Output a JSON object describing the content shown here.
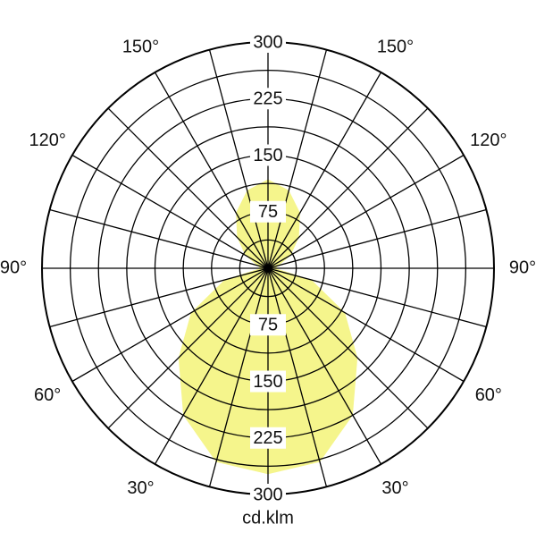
{
  "chart_data": {
    "type": "polar",
    "unit_label": "cd.klm",
    "x": [
      0,
      15,
      30,
      45,
      60,
      75,
      90,
      105,
      120,
      135,
      150,
      165,
      180,
      195,
      210,
      225,
      240,
      255,
      270,
      285,
      300,
      315,
      330,
      345
    ],
    "series": [
      {
        "color": "#f5f58c",
        "values": [
          273,
          266,
          225,
          168,
          118,
          60,
          10,
          15,
          35,
          58,
          85,
          107,
          118,
          107,
          85,
          58,
          35,
          15,
          10,
          60,
          118,
          168,
          225,
          266
        ]
      }
    ],
    "rlim": [
      0,
      300
    ],
    "rticks": [
      75,
      150,
      225,
      300
    ],
    "minor_rticks": [
      37.5,
      112.5,
      187.5,
      262.5
    ],
    "xticks": [
      0,
      15,
      30,
      45,
      60,
      75,
      90,
      105,
      120,
      135,
      150,
      165
    ],
    "angle_labels": [
      {
        "value": 30,
        "label": "30°"
      },
      {
        "value": 60,
        "label": "60°"
      },
      {
        "value": 90,
        "label": "90°"
      },
      {
        "value": 120,
        "label": "120°"
      },
      {
        "value": 150,
        "label": "150°"
      }
    ],
    "grid": true
  }
}
